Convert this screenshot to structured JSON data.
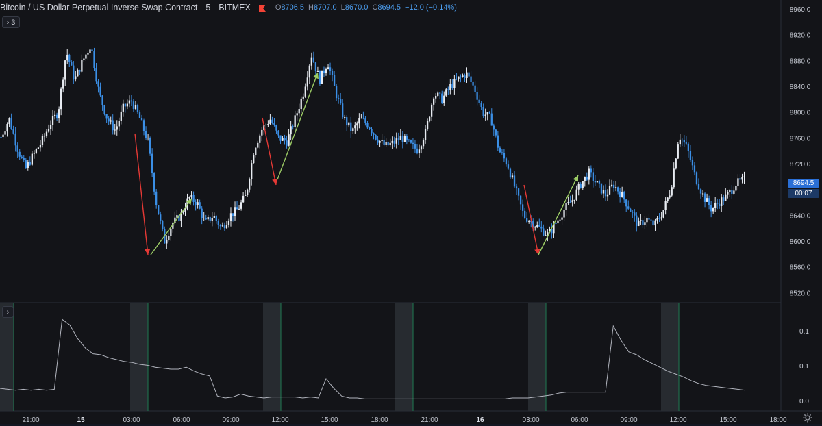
{
  "header": {
    "title": "Bitcoin / US Dollar Perpetual Inverse Swap Contract",
    "interval": "5",
    "exchange": "BITMEX",
    "ohlc": {
      "open_key": "O",
      "open": "8706.5",
      "high_key": "H",
      "high": "8707.0",
      "low_key": "L",
      "low": "8670.0",
      "close_key": "C",
      "close": "8694.5",
      "change": "−12.0 (−0.14%)"
    },
    "indicator_count": "3",
    "indicator_toggle_icon": "chevron-right-icon"
  },
  "price_axis": {
    "ticks": [
      "8960.0",
      "8920.0",
      "8880.0",
      "8840.0",
      "8800.0",
      "8760.0",
      "8720.0",
      "8640.0",
      "8600.0",
      "8560.0",
      "8520.0"
    ],
    "current_price": "8694.5",
    "countdown": "00:07"
  },
  "indicator_axis": {
    "ticks": [
      "0.1",
      "0.1",
      "0.0"
    ]
  },
  "time_axis": {
    "ticks": [
      {
        "label": "21:00",
        "bold": false
      },
      {
        "label": "15",
        "bold": true
      },
      {
        "label": "03:00",
        "bold": false
      },
      {
        "label": "06:00",
        "bold": false
      },
      {
        "label": "09:00",
        "bold": false
      },
      {
        "label": "12:00",
        "bold": false
      },
      {
        "label": "15:00",
        "bold": false
      },
      {
        "label": "18:00",
        "bold": false
      },
      {
        "label": "21:00",
        "bold": false
      },
      {
        "label": "16",
        "bold": true
      },
      {
        "label": "03:00",
        "bold": false
      },
      {
        "label": "06:00",
        "bold": false
      },
      {
        "label": "09:00",
        "bold": false
      },
      {
        "label": "12:00",
        "bold": false
      },
      {
        "label": "15:00",
        "bold": false
      },
      {
        "label": "18:00",
        "bold": false
      }
    ],
    "settings_icon": "gear-icon"
  },
  "colors": {
    "background": "#131418",
    "up_candle": "#e8ecf2",
    "down_candle": "#3b8fe6",
    "red_arrow": "#e53935",
    "green_arrow": "#9ccc65",
    "indicator_line": "#b2b5be",
    "session_band": "#2a2d33",
    "session_line": "#1e6b4a"
  },
  "chart_data": [
    {
      "type": "candlestick",
      "title": "Bitcoin / US Dollar Perpetual Inverse Swap Contract",
      "timeframe_minutes": 5,
      "x_ticks": [
        "21:00",
        "15",
        "03:00",
        "06:00",
        "09:00",
        "12:00",
        "15:00",
        "18:00",
        "21:00",
        "16",
        "03:00",
        "06:00",
        "09:00",
        "12:00",
        "15:00",
        "18:00"
      ],
      "y_ticks": [
        8520,
        8560,
        8600,
        8640,
        8720,
        8760,
        8800,
        8840,
        8880,
        8920,
        8960
      ],
      "ylim": [
        8505,
        8970
      ],
      "last_price": 8694.5,
      "path": [
        [
          "20:00",
          8762
        ],
        [
          "20:30",
          8790
        ],
        [
          "21:00",
          8745
        ],
        [
          "21:30",
          8712
        ],
        [
          "22:00",
          8735
        ],
        [
          "22:30",
          8755
        ],
        [
          "23:00",
          8782
        ],
        [
          "23:30",
          8800
        ],
        [
          "00:00",
          8895
        ],
        [
          "00:15",
          8850
        ],
        [
          "00:30",
          8880
        ],
        [
          "00:45",
          8905
        ],
        [
          "01:00",
          8830
        ],
        [
          "01:30",
          8790
        ],
        [
          "02:00",
          8772
        ],
        [
          "02:30",
          8808
        ],
        [
          "03:00",
          8818
        ],
        [
          "03:30",
          8790
        ],
        [
          "04:00",
          8755
        ],
        [
          "04:30",
          8660
        ],
        [
          "05:00",
          8600
        ],
        [
          "05:30",
          8628
        ],
        [
          "06:00",
          8640
        ],
        [
          "06:30",
          8668
        ],
        [
          "07:00",
          8660
        ],
        [
          "07:30",
          8628
        ],
        [
          "08:00",
          8640
        ],
        [
          "08:30",
          8620
        ],
        [
          "09:00",
          8640
        ],
        [
          "09:30",
          8650
        ],
        [
          "10:00",
          8672
        ],
        [
          "10:30",
          8745
        ],
        [
          "11:00",
          8775
        ],
        [
          "11:30",
          8790
        ],
        [
          "12:00",
          8760
        ],
        [
          "12:30",
          8755
        ],
        [
          "13:00",
          8790
        ],
        [
          "13:30",
          8830
        ],
        [
          "14:00",
          8890
        ],
        [
          "14:15",
          8850
        ],
        [
          "14:30",
          8878
        ],
        [
          "15:00",
          8830
        ],
        [
          "15:30",
          8790
        ],
        [
          "16:00",
          8770
        ],
        [
          "16:30",
          8790
        ],
        [
          "17:00",
          8780
        ],
        [
          "17:30",
          8760
        ],
        [
          "18:00",
          8748
        ],
        [
          "18:30",
          8752
        ],
        [
          "19:00",
          8762
        ],
        [
          "19:30",
          8750
        ],
        [
          "20:00",
          8742
        ],
        [
          "20:30",
          8770
        ],
        [
          "21:00",
          8830
        ],
        [
          "21:30",
          8820
        ],
        [
          "22:00",
          8840
        ],
        [
          "22:30",
          8852
        ],
        [
          "23:00",
          8860
        ],
        [
          "23:30",
          8836
        ],
        [
          "00:00",
          8800
        ],
        [
          "00:30",
          8790
        ],
        [
          "01:00",
          8740
        ],
        [
          "01:30",
          8720
        ],
        [
          "02:00",
          8680
        ],
        [
          "02:30",
          8640
        ],
        [
          "03:00",
          8630
        ],
        [
          "03:30",
          8620
        ],
        [
          "04:00",
          8610
        ],
        [
          "04:30",
          8630
        ],
        [
          "05:00",
          8650
        ],
        [
          "05:30",
          8665
        ],
        [
          "06:00",
          8690
        ],
        [
          "06:30",
          8706
        ],
        [
          "07:00",
          8688
        ],
        [
          "07:30",
          8672
        ],
        [
          "08:00",
          8688
        ],
        [
          "08:30",
          8672
        ],
        [
          "09:00",
          8650
        ],
        [
          "09:30",
          8625
        ],
        [
          "10:00",
          8635
        ],
        [
          "10:30",
          8625
        ],
        [
          "11:00",
          8645
        ],
        [
          "11:30",
          8680
        ],
        [
          "12:00",
          8765
        ],
        [
          "12:30",
          8745
        ],
        [
          "13:00",
          8700
        ],
        [
          "13:30",
          8670
        ],
        [
          "14:00",
          8650
        ],
        [
          "14:30",
          8662
        ],
        [
          "15:00",
          8672
        ],
        [
          "15:30",
          8690
        ],
        [
          "15:45",
          8694.5
        ]
      ],
      "annotations": [
        {
          "type": "arrow",
          "color": "red",
          "from": [
            "03:00",
            8800
          ],
          "to": [
            "04:30",
            8585
          ]
        },
        {
          "type": "arrow",
          "color": "green",
          "from": [
            "04:45",
            8585
          ],
          "to": [
            "07:00",
            8668
          ]
        },
        {
          "type": "arrow",
          "color": "red",
          "from": [
            "11:30",
            8797
          ],
          "to": [
            "12:30",
            8692
          ]
        },
        {
          "type": "arrow",
          "color": "green",
          "from": [
            "12:30",
            8692
          ],
          "to": [
            "14:00",
            8868
          ]
        },
        {
          "type": "arrow",
          "color": "red",
          "from": [
            "03:30",
            8688
          ],
          "to": [
            "04:00",
            8585
          ]
        },
        {
          "type": "arrow",
          "color": "green",
          "from": [
            "04:00",
            8585
          ],
          "to": [
            "06:00",
            8707
          ]
        }
      ]
    },
    {
      "type": "line",
      "title": "",
      "y_ticks": [
        "0.1",
        "0.1",
        "0.0"
      ],
      "x_ticks": [
        "21:00",
        "15",
        "03:00",
        "06:00",
        "09:00",
        "12:00",
        "15:00",
        "18:00",
        "21:00",
        "16",
        "03:00",
        "06:00",
        "09:00",
        "12:00",
        "15:00",
        "18:00"
      ],
      "values_relative": [
        0.2,
        0.19,
        0.18,
        0.19,
        0.18,
        0.19,
        0.18,
        0.19,
        0.92,
        0.86,
        0.72,
        0.62,
        0.56,
        0.55,
        0.52,
        0.5,
        0.48,
        0.47,
        0.45,
        0.44,
        0.42,
        0.41,
        0.4,
        0.4,
        0.42,
        0.38,
        0.35,
        0.33,
        0.12,
        0.1,
        0.11,
        0.14,
        0.12,
        0.11,
        0.1,
        0.11,
        0.11,
        0.11,
        0.11,
        0.1,
        0.11,
        0.1,
        0.3,
        0.2,
        0.12,
        0.1,
        0.1,
        0.09,
        0.09,
        0.09,
        0.09,
        0.09,
        0.09,
        0.09,
        0.09,
        0.09,
        0.09,
        0.09,
        0.09,
        0.09,
        0.09,
        0.09,
        0.09,
        0.09,
        0.09,
        0.09,
        0.1,
        0.1,
        0.1,
        0.11,
        0.12,
        0.13,
        0.15,
        0.16,
        0.16,
        0.16,
        0.16,
        0.16,
        0.16,
        0.85,
        0.7,
        0.58,
        0.55,
        0.5,
        0.46,
        0.42,
        0.38,
        0.35,
        0.32,
        0.28,
        0.25,
        0.23,
        0.22,
        0.21,
        0.2,
        0.19,
        0.18
      ],
      "session_bands": [
        "02:30-04:00",
        "11:00-12:30",
        "19:30-21:00",
        "02:30-04:00",
        "11:00-12:30",
        "19:30-21:00"
      ]
    }
  ]
}
